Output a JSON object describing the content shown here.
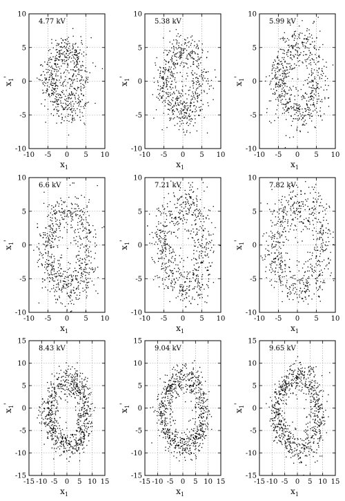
{
  "chart_data": [
    {
      "type": "scatter",
      "label": "4.77 kV",
      "xlabel": "x1",
      "ylabel": "x1'",
      "xlim": [
        -10,
        10
      ],
      "ylim": [
        -10,
        10
      ],
      "xticks": [
        -10,
        -5,
        0,
        5,
        10
      ],
      "yticks": [
        -10,
        -5,
        0,
        5,
        10
      ],
      "ring": {
        "cx": -0.3,
        "cy": 0.2,
        "rx": 4.2,
        "ry": 4.3,
        "width": 1.5,
        "n": 600
      },
      "grid": true
    },
    {
      "type": "scatter",
      "label": "5.38 kV",
      "xlabel": "x1",
      "ylabel": "x1'",
      "xlim": [
        -10,
        10
      ],
      "ylim": [
        -10,
        10
      ],
      "xticks": [
        -10,
        -5,
        0,
        5,
        10
      ],
      "yticks": [
        -10,
        -5,
        0,
        5,
        10
      ],
      "ring": {
        "cx": 0.0,
        "cy": 0.0,
        "rx": 4.8,
        "ry": 4.8,
        "width": 1.6,
        "n": 620
      },
      "grid": true
    },
    {
      "type": "scatter",
      "label": "5.99 kV",
      "xlabel": "x1",
      "ylabel": "x1'",
      "xlim": [
        -10,
        10
      ],
      "ylim": [
        -10,
        10
      ],
      "xticks": [
        -10,
        -5,
        0,
        5,
        10
      ],
      "yticks": [
        -10,
        -5,
        0,
        5,
        10
      ],
      "ring": {
        "cx": 0.2,
        "cy": 0.3,
        "rx": 5.2,
        "ry": 5.3,
        "width": 1.7,
        "n": 640
      },
      "grid": true
    },
    {
      "type": "scatter",
      "label": "6.6 kV",
      "xlabel": "x1",
      "ylabel": "x1'",
      "xlim": [
        -10,
        10
      ],
      "ylim": [
        -10,
        10
      ],
      "xticks": [
        -10,
        -5,
        0,
        5,
        10
      ],
      "yticks": [
        -10,
        -5,
        0,
        5,
        10
      ],
      "ring": {
        "cx": 0.0,
        "cy": -0.5,
        "rx": 5.7,
        "ry": 5.8,
        "width": 1.7,
        "n": 660
      },
      "grid": true
    },
    {
      "type": "scatter",
      "label": "7.21 kV",
      "xlabel": "x1",
      "ylabel": "x1'",
      "xlim": [
        -10,
        10
      ],
      "ylim": [
        -10,
        10
      ],
      "xticks": [
        -10,
        -5,
        0,
        5,
        10
      ],
      "yticks": [
        -10,
        -5,
        0,
        5,
        10
      ],
      "ring": {
        "cx": 0.0,
        "cy": -0.3,
        "rx": 6.0,
        "ry": 6.2,
        "width": 1.8,
        "n": 660
      },
      "grid": true
    },
    {
      "type": "scatter",
      "label": "7.82 kV",
      "xlabel": "x1",
      "ylabel": "x1'",
      "xlim": [
        -10,
        10
      ],
      "ylim": [
        -10,
        10
      ],
      "xticks": [
        -10,
        -5,
        0,
        5,
        10
      ],
      "yticks": [
        -10,
        -5,
        0,
        5,
        10
      ],
      "ring": {
        "cx": 0.3,
        "cy": -0.3,
        "rx": 6.6,
        "ry": 6.6,
        "width": 1.8,
        "n": 660
      },
      "grid": true
    },
    {
      "type": "scatter",
      "label": "8.43 kV",
      "xlabel": "x1",
      "ylabel": "x1'",
      "xlim": [
        -15,
        15
      ],
      "ylim": [
        -15,
        15
      ],
      "xticks": [
        -15,
        -10,
        -5,
        0,
        5,
        10,
        15
      ],
      "yticks": [
        -15,
        -10,
        -5,
        0,
        5,
        10,
        15
      ],
      "ring": {
        "cx": 0.0,
        "cy": -1.0,
        "rx": 7.5,
        "ry": 7.3,
        "width": 1.8,
        "n": 760
      },
      "grid": true
    },
    {
      "type": "scatter",
      "label": "9.04 kV",
      "xlabel": "x1",
      "ylabel": "x1'",
      "xlim": [
        -15,
        15
      ],
      "ylim": [
        -15,
        15
      ],
      "xticks": [
        -15,
        -10,
        -5,
        0,
        5,
        10,
        15
      ],
      "yticks": [
        -15,
        -10,
        -5,
        0,
        5,
        10,
        15
      ],
      "ring": {
        "cx": 0.0,
        "cy": -1.0,
        "rx": 8.0,
        "ry": 7.8,
        "width": 1.8,
        "n": 760
      },
      "grid": true
    },
    {
      "type": "scatter",
      "label": "9.65 kV",
      "xlabel": "x1",
      "ylabel": "x1'",
      "xlim": [
        -15,
        15
      ],
      "ylim": [
        -15,
        15
      ],
      "xticks": [
        -15,
        -10,
        -5,
        0,
        5,
        10,
        15
      ],
      "yticks": [
        -15,
        -10,
        -5,
        0,
        5,
        10,
        15
      ],
      "ring": {
        "cx": 0.0,
        "cy": -1.0,
        "rx": 8.4,
        "ry": 8.2,
        "width": 1.8,
        "n": 760
      },
      "grid": true
    }
  ],
  "colors": {
    "points": "#000000",
    "grid": "#9a9a9a",
    "frame": "#000000",
    "background": "#ffffff"
  }
}
